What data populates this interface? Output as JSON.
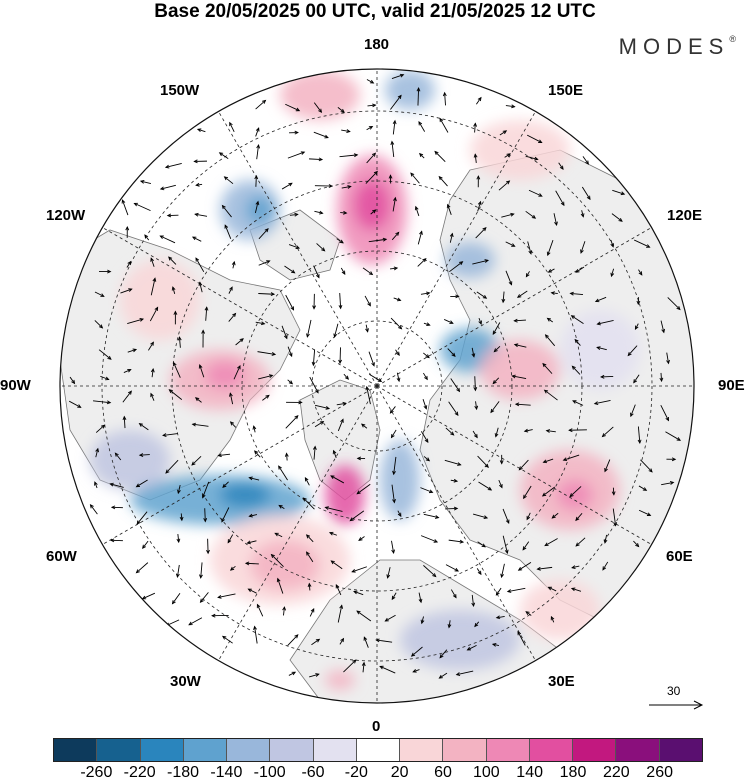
{
  "header": {
    "title": "Base 20/05/2025 00 UTC, valid 21/05/2025 12 UTC",
    "brand": "MODES",
    "brand_mark": "®"
  },
  "map": {
    "projection": "north-polar-stereographic",
    "longitude_labels": {
      "top": "180",
      "bottom": "0",
      "left": "90W",
      "right": "90E",
      "upper_left_1": "150W",
      "upper_left_2": "120W",
      "lower_left_1": "60W",
      "lower_left_2": "30W",
      "upper_right_1": "150E",
      "upper_right_2": "120E",
      "lower_right_1": "60E",
      "lower_right_2": "30E"
    },
    "graticule": "dashed",
    "field": "shaded anomaly with wind vectors",
    "colors": {
      "land_fill": "#eeeeee",
      "coast": "#777777",
      "negative_accent": "#2f6fae",
      "positive_accent": "#d83c8a"
    }
  },
  "reference_vector": {
    "value": "30"
  },
  "colorbar": {
    "ticks": [
      "-260",
      "-220",
      "-180",
      "-140",
      "-100",
      "-60",
      "-20",
      "20",
      "60",
      "100",
      "140",
      "180",
      "220",
      "260"
    ],
    "colors": [
      "#0d3a5c",
      "#16618f",
      "#2a85bd",
      "#5fa2cf",
      "#99b7db",
      "#c0c6e2",
      "#e3e1f0",
      "#ffffff",
      "#f9d6d8",
      "#f3b3c2",
      "#ee88b5",
      "#e24fa0",
      "#c2187f",
      "#8a0f7c",
      "#5a0f70"
    ]
  }
}
